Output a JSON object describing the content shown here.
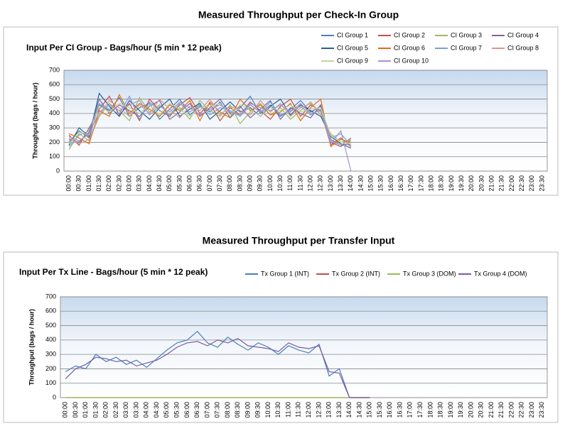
{
  "chart_data": [
    {
      "type": "line",
      "title": "Measured Throughput per Check-In Group",
      "subtitle": "Input Per CI Group - Bags/hour (5 min * 12 peak)",
      "y_label": "Throughput  (bags / hour)",
      "categories": [
        "00:00",
        "00:30",
        "01:00",
        "01:30",
        "02:00",
        "02:30",
        "03:00",
        "03:30",
        "04:00",
        "04:30",
        "05:00",
        "05:30",
        "06:00",
        "06:30",
        "07:00",
        "07:30",
        "08:00",
        "08:30",
        "09:00",
        "09:30",
        "10:00",
        "10:30",
        "11:00",
        "11:30",
        "12:00",
        "12:30",
        "13:00",
        "13:30",
        "14:00",
        "14:30",
        "15:00",
        "15:30",
        "16:00",
        "16:30",
        "17:00",
        "17:30",
        "18:00",
        "18:30",
        "19:00",
        "19:30",
        "20:00",
        "20:30",
        "21:00",
        "21:30",
        "22:00",
        "22:30",
        "23:00",
        "23:30"
      ],
      "ylim": [
        0,
        700
      ],
      "yticks": [
        0,
        100,
        200,
        300,
        400,
        500,
        600,
        700
      ],
      "grid": true,
      "series": [
        {
          "name": "CI Group 1",
          "color": "#4a7ebb",
          "values": [
            200,
            280,
            230,
            460,
            420,
            510,
            380,
            440,
            470,
            360,
            430,
            500,
            390,
            450,
            410,
            480,
            370,
            440,
            520,
            400,
            460,
            380,
            430,
            490,
            410,
            450,
            220,
            180,
            190,
            null,
            null,
            null,
            null,
            null,
            null,
            null,
            null,
            null,
            null,
            null,
            null,
            null,
            null,
            null,
            null,
            null,
            null,
            null
          ]
        },
        {
          "name": "CI Group 2",
          "color": "#c0504d",
          "values": [
            250,
            180,
            300,
            430,
            520,
            390,
            470,
            350,
            500,
            420,
            380,
            460,
            510,
            400,
            470,
            350,
            440,
            390,
            480,
            420,
            360,
            450,
            500,
            380,
            460,
            420,
            180,
            230,
            170,
            null,
            null,
            null,
            null,
            null,
            null,
            null,
            null,
            null,
            null,
            null,
            null,
            null,
            null,
            null,
            null,
            null,
            null,
            null
          ]
        },
        {
          "name": "CI Group 3",
          "color": "#9bbb59",
          "values": [
            150,
            260,
            210,
            380,
            470,
            420,
            350,
            510,
            410,
            460,
            390,
            440,
            360,
            490,
            420,
            380,
            460,
            330,
            410,
            470,
            390,
            440,
            360,
            420,
            480,
            390,
            260,
            200,
            210,
            null,
            null,
            null,
            null,
            null,
            null,
            null,
            null,
            null,
            null,
            null,
            null,
            null,
            null,
            null,
            null,
            null,
            null,
            null
          ]
        },
        {
          "name": "CI Group 4",
          "color": "#8064a2",
          "values": [
            220,
            200,
            270,
            500,
            400,
            460,
            420,
            380,
            450,
            490,
            360,
            410,
            470,
            380,
            440,
            500,
            400,
            450,
            370,
            430,
            490,
            360,
            440,
            400,
            370,
            460,
            200,
            170,
            230,
            null,
            null,
            null,
            null,
            null,
            null,
            null,
            null,
            null,
            null,
            null,
            null,
            null,
            null,
            null,
            null,
            null,
            null,
            null
          ]
        },
        {
          "name": "CI Group 5",
          "color": "#2c5d8f",
          "values": [
            180,
            300,
            240,
            540,
            450,
            380,
            490,
            420,
            360,
            440,
            500,
            380,
            430,
            470,
            360,
            420,
            480,
            410,
            440,
            380,
            450,
            500,
            390,
            460,
            420,
            380,
            240,
            190,
            160,
            null,
            null,
            null,
            null,
            null,
            null,
            null,
            null,
            null,
            null,
            null,
            null,
            null,
            null,
            null,
            null,
            null,
            null,
            null
          ]
        },
        {
          "name": "CI Group 6",
          "color": "#e46c0a",
          "values": [
            260,
            230,
            190,
            420,
            380,
            530,
            400,
            470,
            430,
            380,
            460,
            420,
            490,
            350,
            480,
            410,
            370,
            500,
            420,
            460,
            390,
            410,
            470,
            350,
            440,
            500,
            170,
            220,
            200,
            null,
            null,
            null,
            null,
            null,
            null,
            null,
            null,
            null,
            null,
            null,
            null,
            null,
            null,
            null,
            null,
            null,
            null,
            null
          ]
        },
        {
          "name": "CI Group 7",
          "color": "#7ba0cd",
          "values": [
            170,
            250,
            280,
            470,
            430,
            400,
            520,
            360,
            480,
            420,
            390,
            470,
            410,
            460,
            390,
            440,
            420,
            380,
            460,
            410,
            480,
            390,
            420,
            450,
            390,
            430,
            230,
            260,
            180,
            null,
            null,
            null,
            null,
            null,
            null,
            null,
            null,
            null,
            null,
            null,
            null,
            null,
            null,
            null,
            null,
            null,
            null,
            null
          ]
        },
        {
          "name": "CI Group 8",
          "color": "#d99694",
          "values": [
            230,
            190,
            220,
            390,
            490,
            440,
            380,
            460,
            400,
            500,
            430,
            370,
            450,
            420,
            500,
            390,
            450,
            420,
            390,
            490,
            410,
            470,
            380,
            440,
            470,
            410,
            210,
            180,
            220,
            null,
            null,
            null,
            null,
            null,
            null,
            null,
            null,
            null,
            null,
            null,
            null,
            null,
            null,
            null,
            null,
            null,
            null,
            null
          ]
        },
        {
          "name": "CI Group 9",
          "color": "#c3d69b",
          "values": [
            190,
            270,
            250,
            450,
            410,
            470,
            440,
            400,
            460,
            390,
            470,
            430,
            380,
            440,
            450,
            470,
            390,
            460,
            430,
            380,
            440,
            420,
            460,
            410,
            430,
            440,
            250,
            200,
            190,
            null,
            null,
            null,
            null,
            null,
            null,
            null,
            null,
            null,
            null,
            null,
            null,
            null,
            null,
            null,
            null,
            null,
            null,
            null
          ]
        },
        {
          "name": "CI Group 10",
          "color": "#a593c8",
          "values": [
            240,
            210,
            260,
            410,
            460,
            420,
            460,
            490,
            390,
            450,
            410,
            480,
            440,
            390,
            430,
            460,
            410,
            390,
            470,
            440,
            420,
            460,
            410,
            470,
            400,
            420,
            190,
            280,
            0,
            null,
            null,
            null,
            null,
            null,
            null,
            null,
            null,
            null,
            null,
            null,
            null,
            null,
            null,
            null,
            null,
            null,
            null,
            null
          ]
        }
      ]
    },
    {
      "type": "line",
      "title": "Measured Throughput per Transfer Input",
      "subtitle": "Input Per Tx Line - Bags/hour (5 min * 12 peak)",
      "y_label": "Throughput  (bags / hour)",
      "categories": [
        "00:00",
        "00:30",
        "01:00",
        "01:30",
        "02:00",
        "02:30",
        "03:00",
        "03:30",
        "04:00",
        "04:30",
        "05:00",
        "05:30",
        "06:00",
        "06:30",
        "07:00",
        "07:30",
        "08:00",
        "08:30",
        "09:00",
        "09:30",
        "10:00",
        "10:30",
        "11:00",
        "11:30",
        "12:00",
        "12:30",
        "13:00",
        "13:30",
        "14:00",
        "14:30",
        "15:00",
        "15:30",
        "16:00",
        "16:30",
        "17:00",
        "17:30",
        "18:00",
        "18:30",
        "19:00",
        "19:30",
        "20:00",
        "20:30",
        "21:00",
        "21:30",
        "22:00",
        "22:30",
        "23:00",
        "23:30"
      ],
      "ylim": [
        0,
        700
      ],
      "yticks": [
        0,
        100,
        200,
        300,
        400,
        500,
        600,
        700
      ],
      "grid": true,
      "series": [
        {
          "name": "Tx Group 1 (INT)",
          "color": "#4a7ebb",
          "values": [
            180,
            220,
            200,
            300,
            250,
            280,
            230,
            260,
            210,
            270,
            330,
            380,
            400,
            460,
            380,
            350,
            420,
            370,
            330,
            380,
            350,
            300,
            360,
            330,
            310,
            370,
            150,
            200,
            0,
            0,
            0,
            null,
            null,
            null,
            null,
            null,
            null,
            null,
            null,
            null,
            null,
            null,
            null,
            null,
            null,
            null,
            null,
            null
          ]
        },
        {
          "name": "Tx Group 2 (INT)",
          "color": "#c0504d",
          "values": [
            0,
            0,
            0,
            0,
            0,
            0,
            0,
            0,
            0,
            0,
            0,
            0,
            0,
            0,
            0,
            0,
            0,
            0,
            0,
            0,
            0,
            0,
            0,
            0,
            0,
            0,
            0,
            0,
            0,
            0,
            0,
            null,
            null,
            null,
            null,
            null,
            null,
            null,
            null,
            null,
            null,
            null,
            null,
            null,
            null,
            null,
            null,
            null
          ]
        },
        {
          "name": "Tx Group 3 (DOM)",
          "color": "#9bbb59",
          "values": [
            0,
            0,
            0,
            0,
            0,
            0,
            0,
            0,
            0,
            0,
            0,
            0,
            0,
            0,
            0,
            0,
            0,
            0,
            0,
            0,
            0,
            0,
            0,
            0,
            0,
            0,
            0,
            0,
            0,
            0,
            0,
            null,
            null,
            null,
            null,
            null,
            null,
            null,
            null,
            null,
            null,
            null,
            null,
            null,
            null,
            null,
            null,
            null
          ]
        },
        {
          "name": "Tx Group 4 (DOM)",
          "color": "#7a5ba6",
          "values": [
            130,
            200,
            230,
            280,
            270,
            250,
            260,
            220,
            240,
            260,
            300,
            350,
            380,
            390,
            360,
            400,
            380,
            410,
            360,
            350,
            340,
            320,
            380,
            350,
            340,
            360,
            180,
            170,
            0,
            0,
            0,
            null,
            null,
            null,
            null,
            null,
            null,
            null,
            null,
            null,
            null,
            null,
            null,
            null,
            null,
            null,
            null,
            null
          ]
        }
      ]
    }
  ]
}
